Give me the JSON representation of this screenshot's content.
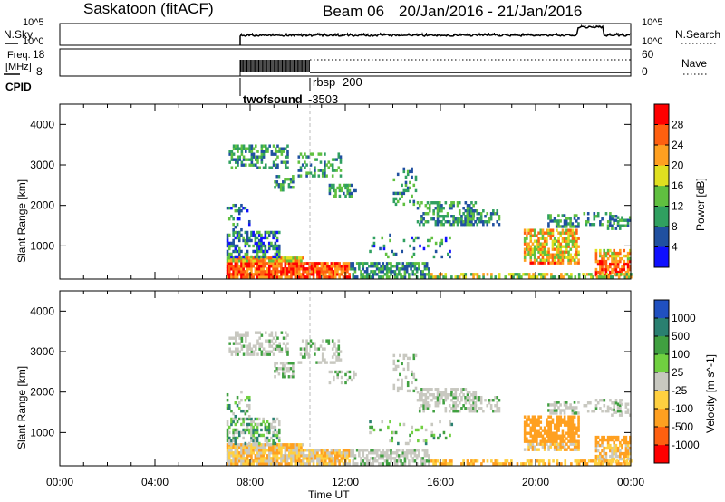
{
  "header": {
    "station": "Saskatoon (fitACF)",
    "beam": "Beam 06",
    "date_range": "20/Jan/2016 - 21/Jan/2016"
  },
  "strips": {
    "nsky_label": "N.Sky",
    "nsky_ticks": [
      "10^5",
      "10^0"
    ],
    "nsearch_label": "N.Search",
    "freq_label": "Freq.",
    "freq_unit": "[MHz]",
    "freq_ticks": [
      "18",
      "8"
    ],
    "nave_label": "Nave",
    "nave_ticks": [
      "60",
      "0"
    ],
    "cpid_label": "CPID",
    "cpid_names": [
      "twofsound",
      "-3503",
      "rbsp",
      "200"
    ]
  },
  "colors": {
    "power": [
      "#1010ff",
      "#2050a0",
      "#30a060",
      "#60c040",
      "#e0e020",
      "#ffa020",
      "#ff6010",
      "#ff0000"
    ],
    "velocity": [
      "#ff0000",
      "#ff6010",
      "#ffa020",
      "#ffd040",
      "#c8c8c0",
      "#70d040",
      "#40a040",
      "#2a8070",
      "#2050c0"
    ]
  },
  "chart_data": [
    {
      "type": "heatmap",
      "title": "",
      "xlabel": "Time UT",
      "ylabel": "Slant Range [km]",
      "x_ticks": [
        "00:00",
        "04:00",
        "08:00",
        "12:00",
        "16:00",
        "20:00",
        "00:00"
      ],
      "y_ticks": [
        1000,
        2000,
        3000,
        4000
      ],
      "ylim": [
        180,
        4500
      ],
      "colorbar": {
        "label": "Power [dB]",
        "ticks": [
          4,
          8,
          12,
          16,
          20,
          24,
          28
        ],
        "range": [
          0,
          32
        ]
      }
    },
    {
      "type": "heatmap",
      "title": "",
      "xlabel": "Time UT",
      "ylabel": "Slant Range [km]",
      "x_ticks": [
        "00:00",
        "04:00",
        "08:00",
        "12:00",
        "16:00",
        "20:00",
        "00:00"
      ],
      "y_ticks": [
        1000,
        2000,
        3000,
        4000
      ],
      "ylim": [
        180,
        4500
      ],
      "colorbar": {
        "label": "Velocity [m s^-1]",
        "ticks": [
          "1000",
          "500",
          "100",
          "25",
          "-25",
          "-100",
          "-500",
          "-1000"
        ]
      }
    }
  ]
}
